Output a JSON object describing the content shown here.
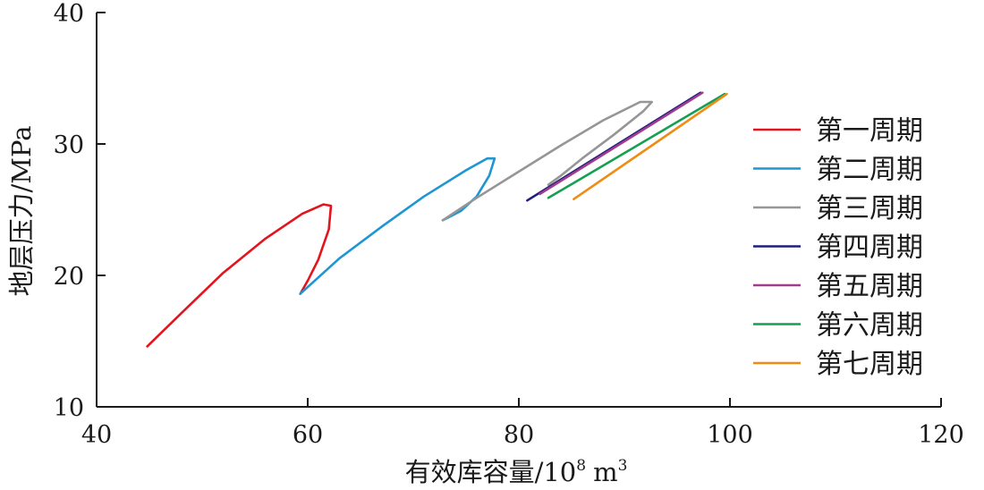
{
  "chart_data": {
    "type": "line",
    "title": "",
    "xlabel": "有效库容量/10",
    "xlabel_sup1": "8",
    "xlabel_unit": "m",
    "xlabel_sup2": "3",
    "ylabel": "地层压力/MPa",
    "xlim": [
      40,
      120
    ],
    "ylim": [
      10,
      40
    ],
    "xticks": [
      40,
      60,
      80,
      100,
      120
    ],
    "yticks": [
      10,
      20,
      30,
      40
    ],
    "grid": false,
    "legend_position": "right",
    "series": [
      {
        "name": "第一周期",
        "color": "#e3141e",
        "x": [
          44.8,
          48,
          52,
          56,
          59.5,
          61.5,
          62.2,
          62,
          61,
          60,
          59.3
        ],
        "y": [
          14.6,
          17.1,
          20.2,
          22.8,
          24.7,
          25.4,
          25.3,
          23.5,
          21.2,
          19.6,
          18.6
        ]
      },
      {
        "name": "第二周期",
        "color": "#1e96d2",
        "x": [
          59.3,
          63,
          67,
          71,
          75,
          77,
          77.7,
          77.2,
          76,
          74.5,
          73.3,
          72.8
        ],
        "y": [
          18.6,
          21.3,
          23.7,
          26.0,
          28.0,
          28.9,
          28.9,
          27.6,
          26.0,
          24.9,
          24.4,
          24.2
        ]
      },
      {
        "name": "第三周期",
        "color": "#969696",
        "x": [
          72.8,
          76,
          80,
          84,
          88,
          91.5,
          92.6,
          91.8,
          89,
          86,
          84,
          82.8
        ],
        "y": [
          24.2,
          25.9,
          27.9,
          29.9,
          31.8,
          33.2,
          33.2,
          32.5,
          30.7,
          28.9,
          27.6,
          26.9
        ]
      },
      {
        "name": "第四周期",
        "color": "#1e1e82",
        "x": [
          80.8,
          97.2
        ],
        "y": [
          25.7,
          33.9
        ]
      },
      {
        "name": "第五周期",
        "color": "#a03c8c",
        "x": [
          82.0,
          97.4
        ],
        "y": [
          26.2,
          33.9
        ]
      },
      {
        "name": "第六周期",
        "color": "#14a050",
        "x": [
          82.8,
          99.5
        ],
        "y": [
          25.9,
          33.8
        ]
      },
      {
        "name": "第七周期",
        "color": "#f08c14",
        "x": [
          85.2,
          99.7
        ],
        "y": [
          25.8,
          33.8
        ]
      }
    ]
  }
}
